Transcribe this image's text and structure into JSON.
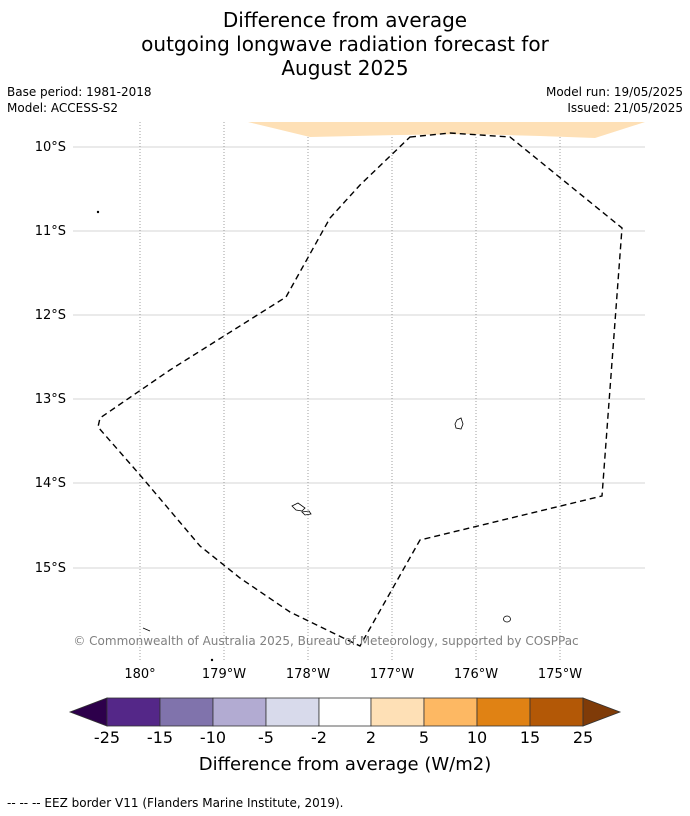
{
  "title": {
    "line1": "Difference from average",
    "line2": "outgoing longwave radiation forecast for",
    "line3": "August 2025"
  },
  "meta": {
    "base_period": "Base period: 1981-2018",
    "model": "Model: ACCESS-S2",
    "model_run": "Model run: 19/05/2025",
    "issued": "Issued: 21/05/2025"
  },
  "map": {
    "lat_labels": [
      "10°S",
      "11°S",
      "12°S",
      "13°S",
      "14°S",
      "15°S"
    ],
    "lon_labels": [
      "180°",
      "179°W",
      "178°W",
      "177°W",
      "176°W",
      "175°W"
    ],
    "copyright": "© Commonwealth of Australia 2025, Bureau of Meteorology, supported by COSPPac",
    "eez_border_style": "dashed",
    "anomaly_fill_color": "#fee0b6"
  },
  "colorbar": {
    "tick_labels": [
      "-25",
      "-15",
      "-10",
      "-5",
      "-2",
      "2",
      "5",
      "10",
      "15",
      "25"
    ],
    "colors": [
      "#2d004b",
      "#542788",
      "#8073ac",
      "#b2abd2",
      "#d8daeb",
      "#ffffff",
      "#fee0b6",
      "#fdb863",
      "#e08214",
      "#b35806",
      "#7f3b08"
    ],
    "label": "Difference from average (W/m2)"
  },
  "footer": "--  --  -- EEZ border V11 (Flanders Marine Institute, 2019)."
}
